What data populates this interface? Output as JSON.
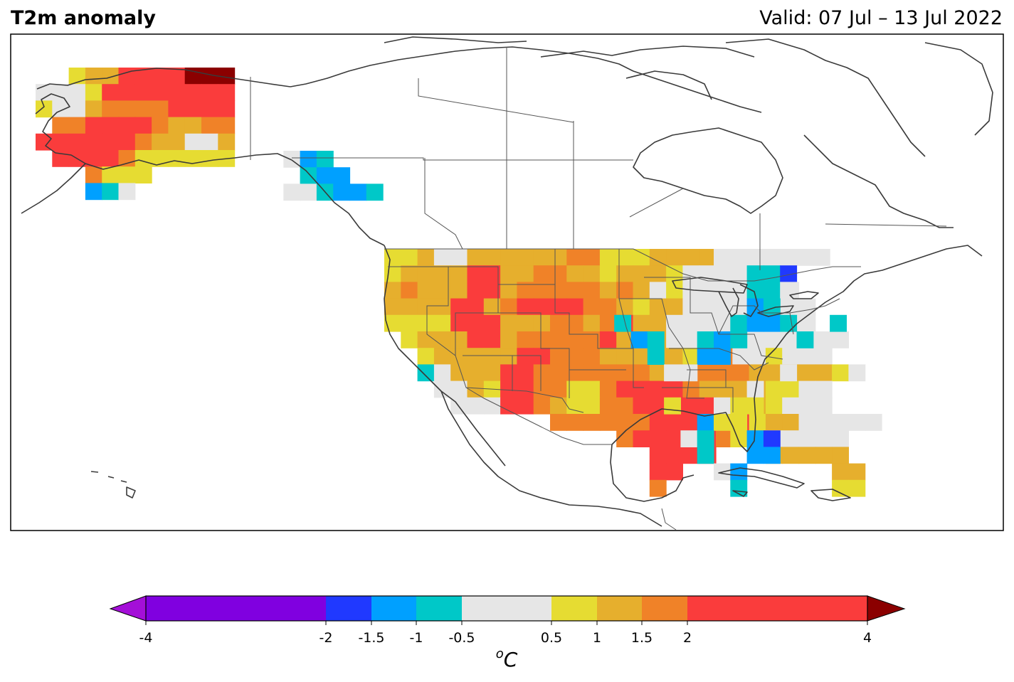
{
  "title": "T2m anomaly",
  "valid": "Valid: 07 Jul – 13 Jul 2022",
  "colorbar": {
    "ticks": [
      "-4",
      "-2",
      "-1.5",
      "-1",
      "-0.5",
      "0.5",
      "1",
      "1.5",
      "2",
      "4"
    ],
    "unit_base": "C",
    "unit_sup": "o",
    "extend_low_color": "#a40fd8",
    "extend_high_color": "#8b0000",
    "bins": [
      {
        "from": -4,
        "to": -2,
        "color": "#8000e0"
      },
      {
        "from": -2,
        "to": -1.5,
        "color": "#2039ff"
      },
      {
        "from": -1.5,
        "to": -1,
        "color": "#00a0ff"
      },
      {
        "from": -1,
        "to": -0.5,
        "color": "#00c8c8"
      },
      {
        "from": -0.5,
        "to": 0.5,
        "color": "#e6e6e6"
      },
      {
        "from": 0.5,
        "to": 1,
        "color": "#e6dc32"
      },
      {
        "from": 1,
        "to": 1.5,
        "color": "#e6af2d"
      },
      {
        "from": 1.5,
        "to": 2,
        "color": "#f08228"
      },
      {
        "from": 2,
        "to": 4,
        "color": "#fa3c3c"
      }
    ]
  },
  "legend_colors": {
    "W": "#e6e6e6",
    "Y": "#e6dc32",
    "G": "#e6af2d",
    "O": "#f08228",
    "R": "#fa3c3c",
    "D": "#8b0000",
    "C": "#00c8c8",
    "L": "#00a0ff",
    "B": "#2039ff"
  },
  "chart_data": {
    "type": "heatmap",
    "units": "°C",
    "categories": {
      "W": "-0.5 to 0.5",
      "Y": "0.5 to 1",
      "G": "1 to 1.5",
      "O": "1.5 to 2",
      "R": "2 to 4",
      "D": "> 4",
      "C": "-1 to -0.5",
      "L": "-1.5 to -1",
      "B": "-2 to -1.5"
    },
    "regions": {
      "alaska": [
        "..YGGRRRRDDD",
        "WWWYRRRRRRRR",
        "YWWGOOOORRRR",
        ".OORRRROGGOO",
        "RRRRRROGGWWG",
        ".RRRROYYYYYY",
        "...OYYY.....",
        "...LCW......"
      ],
      "yukon_panhandle": [
        ".WLC....",
        "..CLL...",
        ".WWCLLC."
      ],
      "conus": [
        "..........WW.WWWW.",
        "...........WCCB...",
        "...........WCCW...",
        "............LC....",
        "....C......CLLC..C",
        ".....LC..CLC...C..",
        "......C..LL.......",
        ".......WW.....W...",
        "............W.....",
        ".......Y..WYY.....",
        ".........LYY......",
        "........WC.YLB....",
        ".........C..LL....",
        "..........WL......",
        "...........C......"
      ]
    }
  }
}
